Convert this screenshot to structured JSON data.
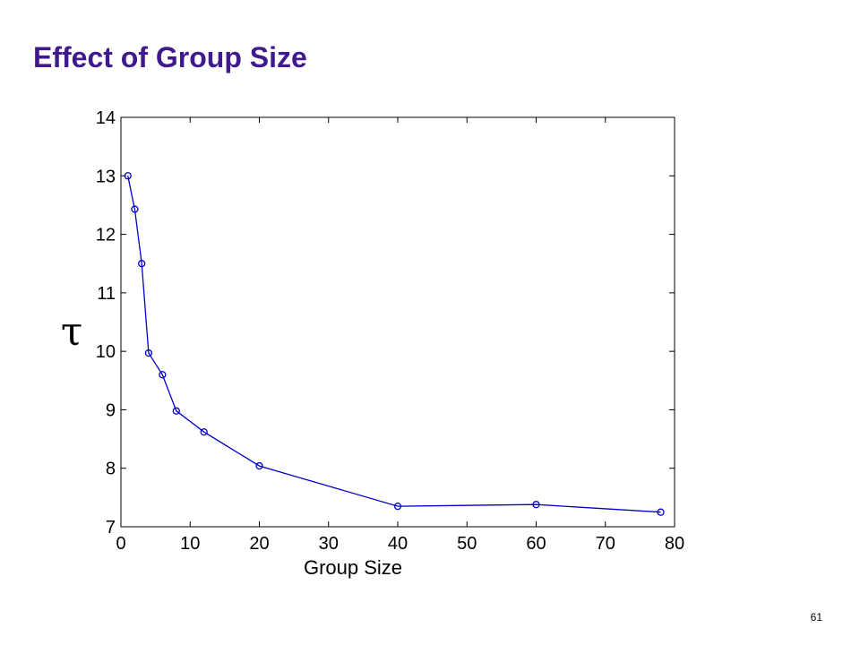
{
  "slide": {
    "title": "Effect of Group Size",
    "page_number": "61"
  },
  "chart_data": {
    "type": "line",
    "title": "",
    "xlabel": "Group Size",
    "ylabel": "τ",
    "xlim": [
      0,
      80
    ],
    "ylim": [
      7,
      14
    ],
    "xticks": [
      0,
      10,
      20,
      30,
      40,
      50,
      60,
      70,
      80
    ],
    "yticks": [
      7,
      8,
      9,
      10,
      11,
      12,
      13,
      14
    ],
    "grid": false,
    "marker": "circle",
    "series": [
      {
        "color": "#0000cc",
        "x": [
          1,
          2,
          3,
          4,
          6,
          8,
          12,
          20,
          40,
          60,
          78
        ],
        "y": [
          13.0,
          12.43,
          11.5,
          9.97,
          9.6,
          8.98,
          8.62,
          8.04,
          7.35,
          7.38,
          7.25
        ]
      }
    ]
  }
}
